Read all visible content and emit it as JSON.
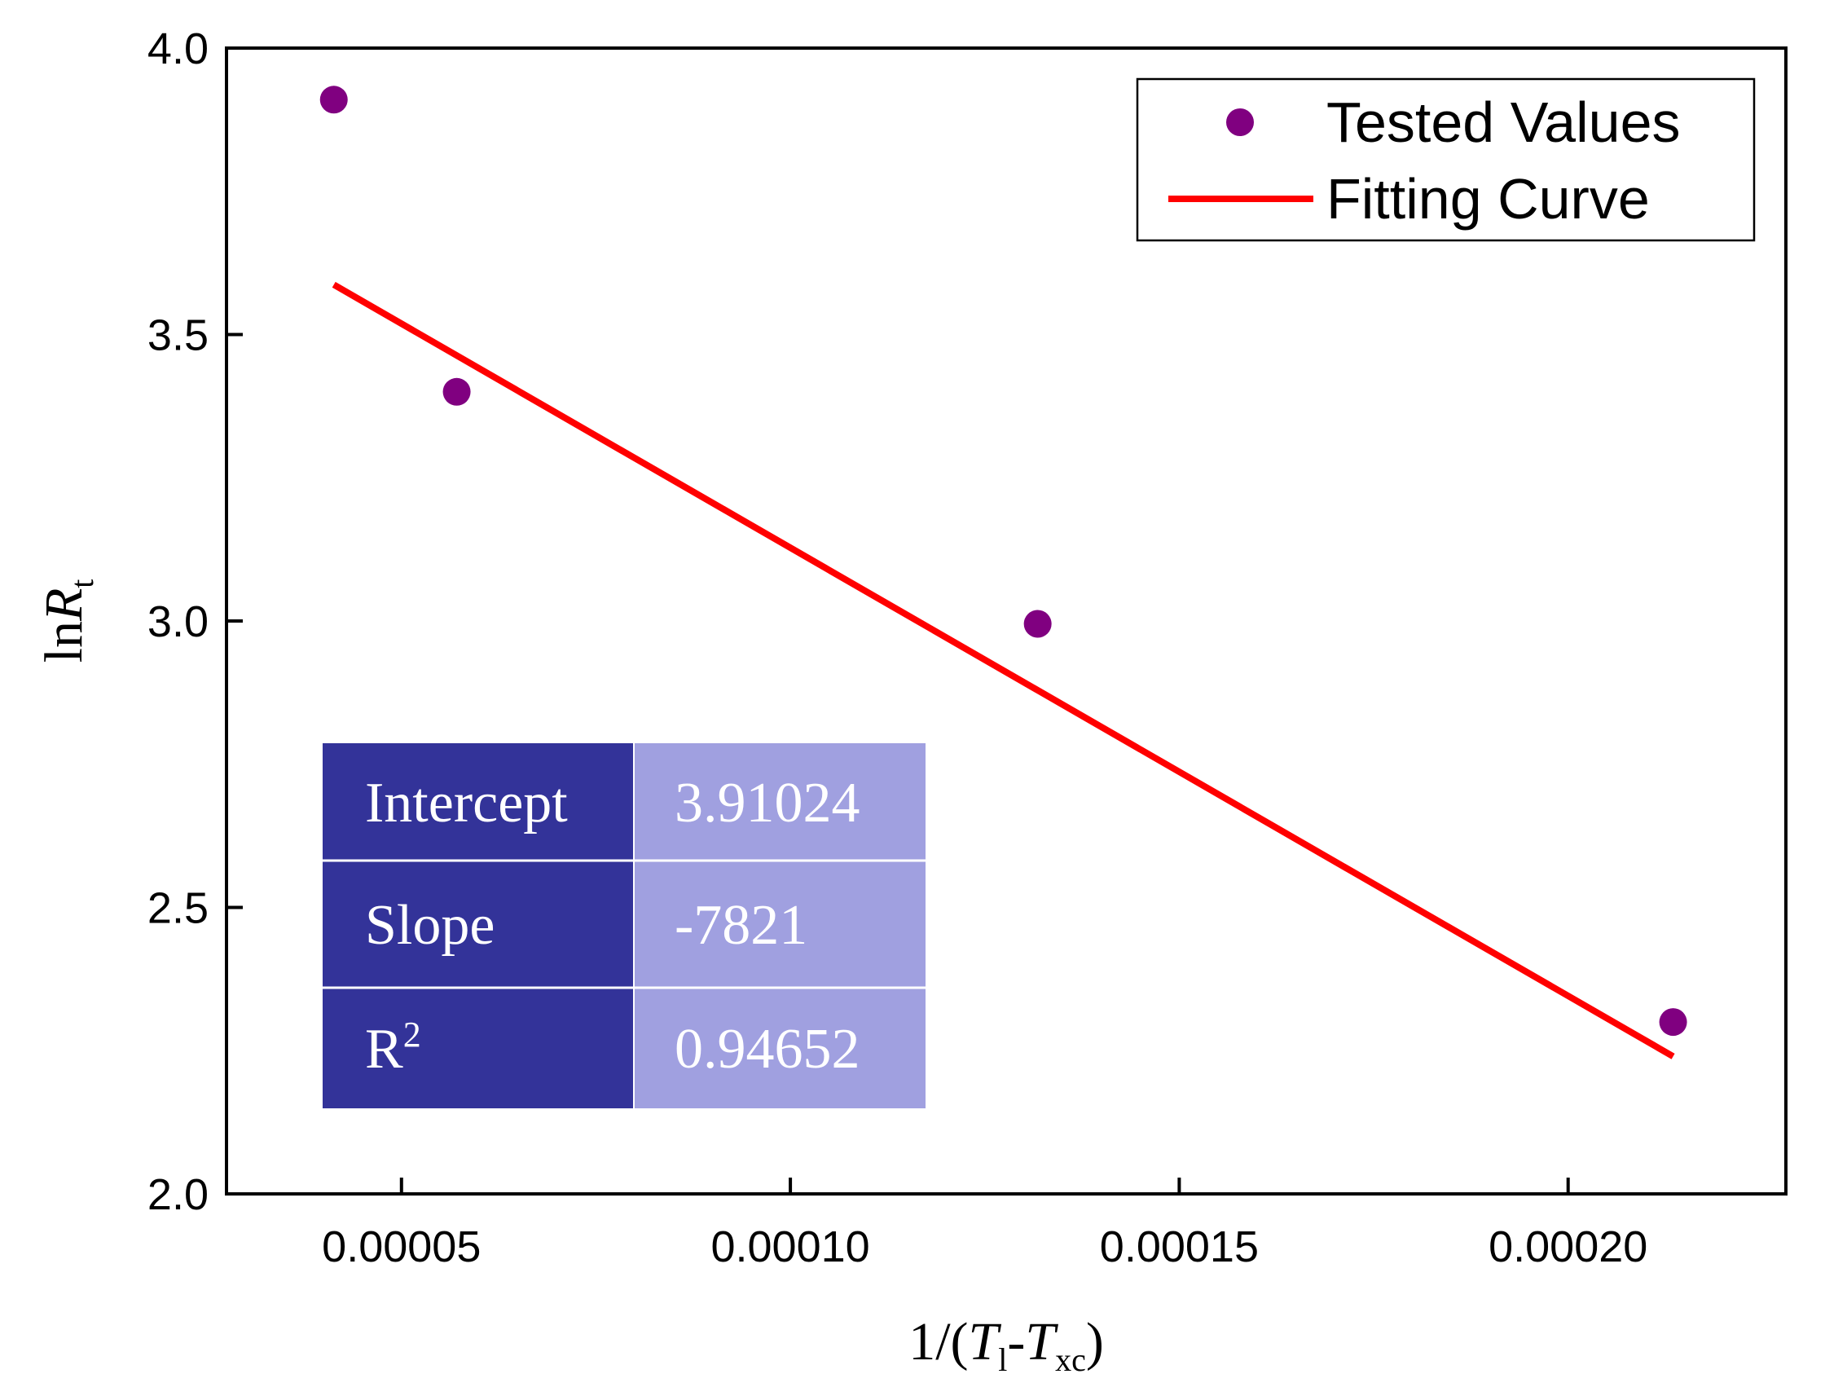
{
  "chart_data": {
    "type": "scatter",
    "xlabel": {
      "prefix": "1/(",
      "t1": "T",
      "t1_sub": "l",
      "dash": "-",
      "t2": "T",
      "t2_sub": "xc",
      "suffix": ")"
    },
    "ylabel": {
      "prefix": "ln",
      "main": "R",
      "sub": "t"
    },
    "xlim": [
      2.75e-05,
      0.000228
    ],
    "ylim": [
      2.0,
      4.0
    ],
    "x_ticks": [
      5e-05,
      0.0001,
      0.00015,
      0.0002
    ],
    "x_tick_labels": [
      "0.00005",
      "0.00010",
      "0.00015",
      "0.00020"
    ],
    "y_ticks": [
      2.0,
      2.5,
      3.0,
      3.5,
      4.0
    ],
    "y_tick_labels": [
      "2.0",
      "2.5",
      "3.0",
      "3.5",
      "4.0"
    ],
    "series": [
      {
        "name": "Tested Values",
        "kind": "scatter",
        "color": "#800080",
        "points": [
          {
            "x": 4.13e-05,
            "y": 3.91
          },
          {
            "x": 5.71e-05,
            "y": 3.4
          },
          {
            "x": 0.0001318,
            "y": 2.995
          },
          {
            "x": 0.0002135,
            "y": 2.3
          }
        ]
      },
      {
        "name": "Fitting Curve",
        "kind": "line",
        "color": "#ff0000",
        "points": [
          {
            "x": 4.13e-05,
            "y": 3.587
          },
          {
            "x": 0.0002135,
            "y": 2.24
          }
        ]
      }
    ],
    "legend": {
      "position": "top-right",
      "entries": [
        "Tested Values",
        "Fitting Curve"
      ]
    },
    "fit_table": {
      "rows": [
        {
          "label": "Intercept",
          "value": "3.91024"
        },
        {
          "label": "Slope",
          "value": "-7821"
        },
        {
          "label": "R",
          "label_sup": "2",
          "value": "0.94652"
        }
      ],
      "label_color": "#333399",
      "value_color": "#a0a0e0"
    }
  }
}
